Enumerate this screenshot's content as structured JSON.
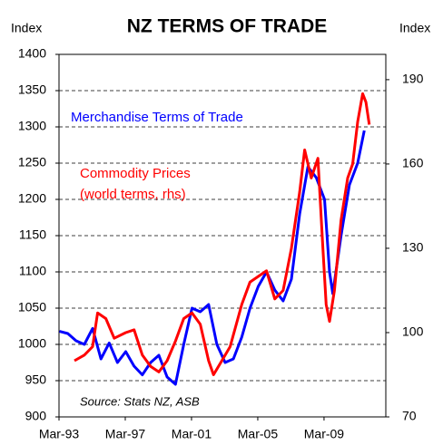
{
  "chart_data": {
    "type": "line",
    "title": "NZ TERMS OF TRADE",
    "y_label": "Index",
    "y2_label": "Index",
    "annotations": [
      "Merchandise Terms of Trade",
      "Commodity Prices",
      "(world terms, rhs)",
      "Source: Stats NZ, ASB"
    ],
    "xlim": [
      1993.17,
      2012.9
    ],
    "xticks": [
      {
        "value": 1993.17,
        "label": "Mar-93"
      },
      {
        "value": 1997.17,
        "label": "Mar-97"
      },
      {
        "value": 2001.17,
        "label": "Mar-01"
      },
      {
        "value": 2005.17,
        "label": "Mar-05"
      },
      {
        "value": 2009.17,
        "label": "Mar-09"
      }
    ],
    "ylim": [
      900,
      1400
    ],
    "yticks": [
      900,
      950,
      1000,
      1050,
      1100,
      1150,
      1200,
      1250,
      1300,
      1350,
      1400
    ],
    "y2lim": [
      70,
      199
    ],
    "y2ticks": [
      70,
      100,
      130,
      160,
      190
    ],
    "grid": true,
    "series": [
      {
        "name": "Merchandise Terms of Trade",
        "color": "#0000ff",
        "axis": "y",
        "x": [
          1993.2,
          1993.7,
          1994.2,
          1994.7,
          1995.2,
          1995.7,
          1996.2,
          1996.7,
          1997.2,
          1997.7,
          1998.2,
          1998.7,
          1999.2,
          1999.7,
          2000.2,
          2000.7,
          2001.2,
          2001.7,
          2002.2,
          2002.7,
          2003.2,
          2003.7,
          2004.2,
          2004.7,
          2005.2,
          2005.7,
          2006.2,
          2006.7,
          2007.2,
          2007.7,
          2008.2,
          2008.7,
          2009.2,
          2009.5,
          2009.7,
          2010.2,
          2010.7,
          2011.2,
          2011.6
        ],
        "values": [
          1018,
          1015,
          1005,
          1000,
          1022,
          980,
          1002,
          975,
          990,
          970,
          958,
          975,
          985,
          955,
          945,
          1000,
          1050,
          1045,
          1055,
          1000,
          975,
          980,
          1010,
          1050,
          1080,
          1100,
          1075,
          1060,
          1090,
          1180,
          1245,
          1230,
          1200,
          1100,
          1070,
          1150,
          1220,
          1250,
          1295
        ]
      },
      {
        "name": "Commodity Prices",
        "color": "#ff0000",
        "axis": "y2",
        "x": [
          1994.1,
          1994.7,
          1995.2,
          1995.5,
          1996.0,
          1996.5,
          1997.2,
          1997.7,
          1998.2,
          1998.7,
          1999.2,
          1999.7,
          2000.2,
          2000.7,
          2001.2,
          2001.7,
          2002.2,
          2002.5,
          2003.0,
          2003.5,
          2004.2,
          2004.7,
          2005.2,
          2005.7,
          2006.2,
          2006.7,
          2007.2,
          2007.7,
          2008.0,
          2008.4,
          2008.8,
          2009.1,
          2009.3,
          2009.5,
          2009.8,
          2010.2,
          2010.6,
          2010.9,
          2011.2,
          2011.5,
          2011.7,
          2011.9
        ],
        "values": [
          90,
          92,
          95,
          107,
          105,
          98,
          100,
          101,
          92,
          88,
          86,
          90,
          97,
          105,
          107,
          103,
          90,
          85,
          90,
          95,
          110,
          118,
          120,
          122,
          112,
          115,
          130,
          150,
          165,
          155,
          162,
          130,
          110,
          104,
          115,
          140,
          155,
          160,
          175,
          185,
          182,
          174
        ]
      }
    ]
  }
}
